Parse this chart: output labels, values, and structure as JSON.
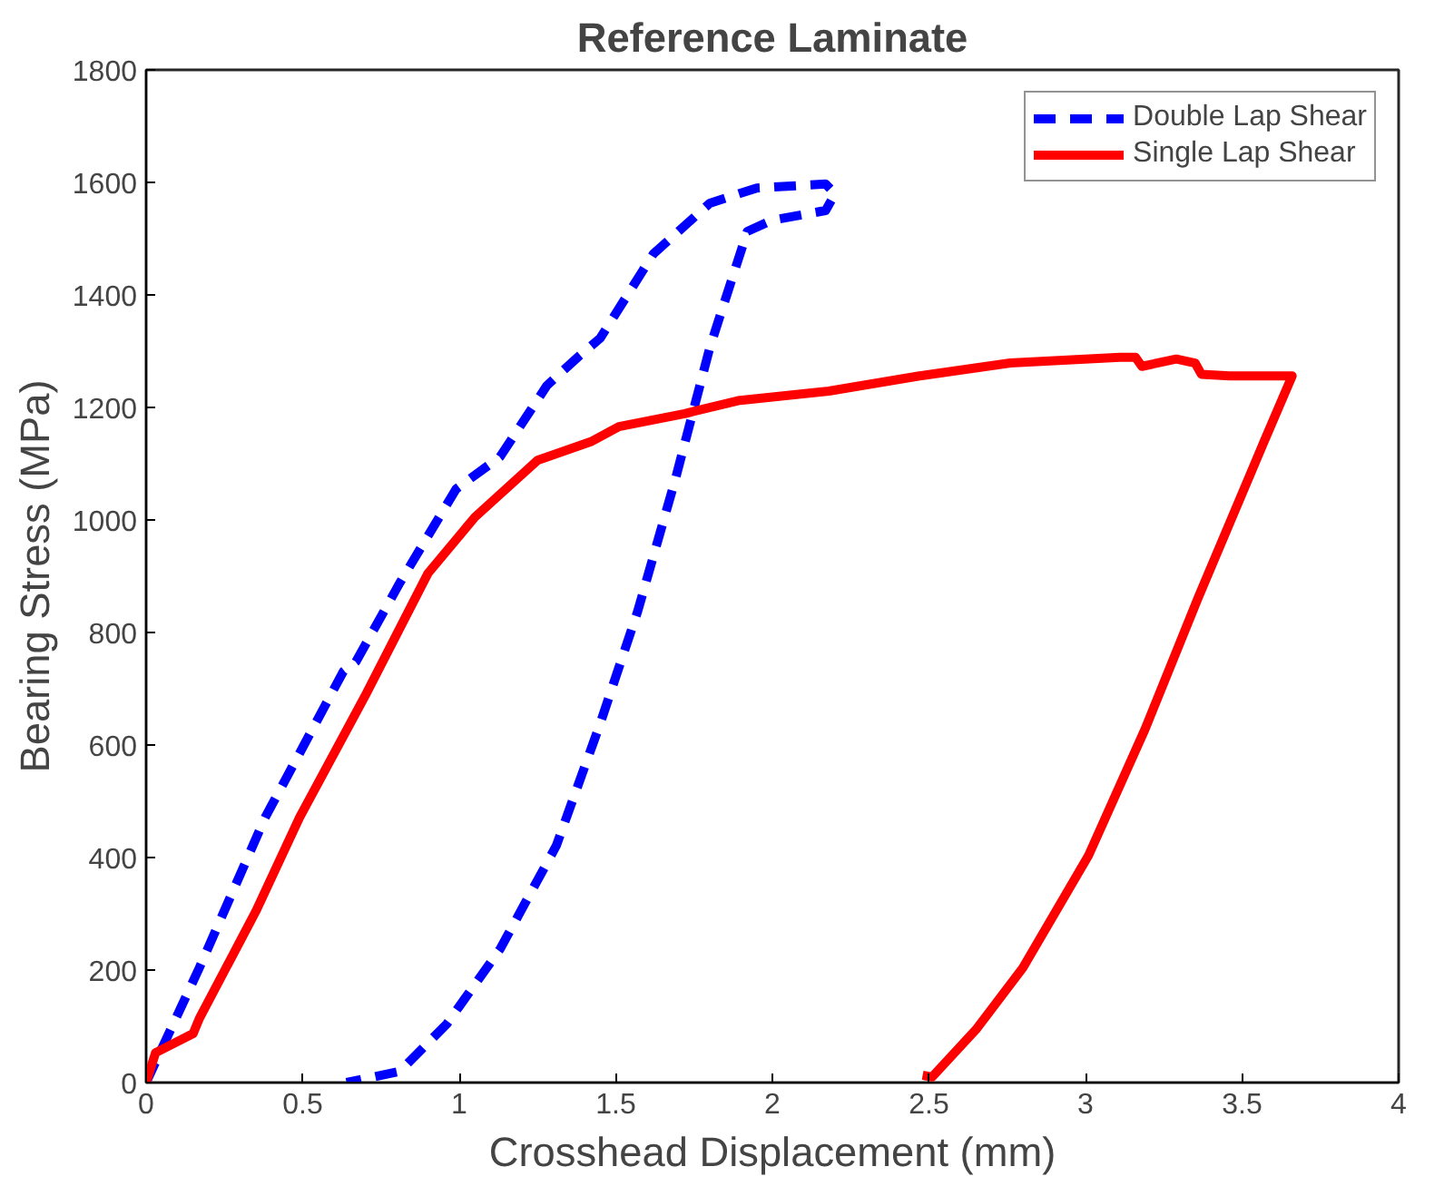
{
  "chart_data": {
    "type": "line",
    "title": "Reference Laminate",
    "xlabel": "Crosshead Displacement (mm)",
    "ylabel": "Bearing Stress (MPa)",
    "xlim": [
      0,
      4
    ],
    "ylim": [
      0,
      1800
    ],
    "xticks": [
      0,
      0.5,
      1,
      1.5,
      2,
      2.5,
      3,
      3.5,
      4
    ],
    "yticks": [
      0,
      200,
      400,
      600,
      800,
      1000,
      1200,
      1400,
      1600,
      1800
    ],
    "grid": false,
    "legend": "top right",
    "marker": "none",
    "series": [
      {
        "name": "Double Lap Shear",
        "color": "#0000ff",
        "line_style": "dashed",
        "x": [
          0,
          0.17,
          0.38,
          0.63,
          0.67,
          0.81,
          0.99,
          1.13,
          1.28,
          1.38,
          1.45,
          1.62,
          1.8,
          1.95,
          2.17,
          2.2,
          2.17,
          2.0,
          1.92,
          1.8,
          1.69,
          1.57,
          1.45,
          1.31,
          1.13,
          0.96,
          0.81,
          0.64
        ],
        "values": [
          0,
          204,
          471,
          731,
          748,
          888,
          1055,
          1112,
          1239,
          1290,
          1323,
          1473,
          1563,
          1590,
          1597,
          1580,
          1550,
          1533,
          1513,
          1306,
          1072,
          838,
          638,
          421,
          237,
          104,
          20,
          0
        ]
      },
      {
        "name": "Single Lap Shear",
        "color": "#ff0000",
        "line_style": "solid",
        "x": [
          0,
          0.03,
          0.15,
          0.17,
          0.35,
          0.49,
          0.7,
          0.9,
          1.05,
          1.25,
          1.42,
          1.51,
          1.72,
          1.89,
          2.18,
          2.47,
          2.76,
          3.11,
          3.16,
          3.18,
          3.29,
          3.35,
          3.37,
          3.46,
          3.66,
          3.57,
          3.36,
          3.19,
          3.01,
          2.8,
          2.65,
          2.51,
          2.48
        ],
        "values": [
          0,
          53,
          87,
          114,
          304,
          471,
          688,
          905,
          1005,
          1106,
          1139,
          1166,
          1189,
          1212,
          1229,
          1256,
          1279,
          1289,
          1289,
          1273,
          1286,
          1279,
          1259,
          1256,
          1256,
          1139,
          862,
          628,
          404,
          204,
          94,
          10,
          13
        ]
      }
    ]
  }
}
